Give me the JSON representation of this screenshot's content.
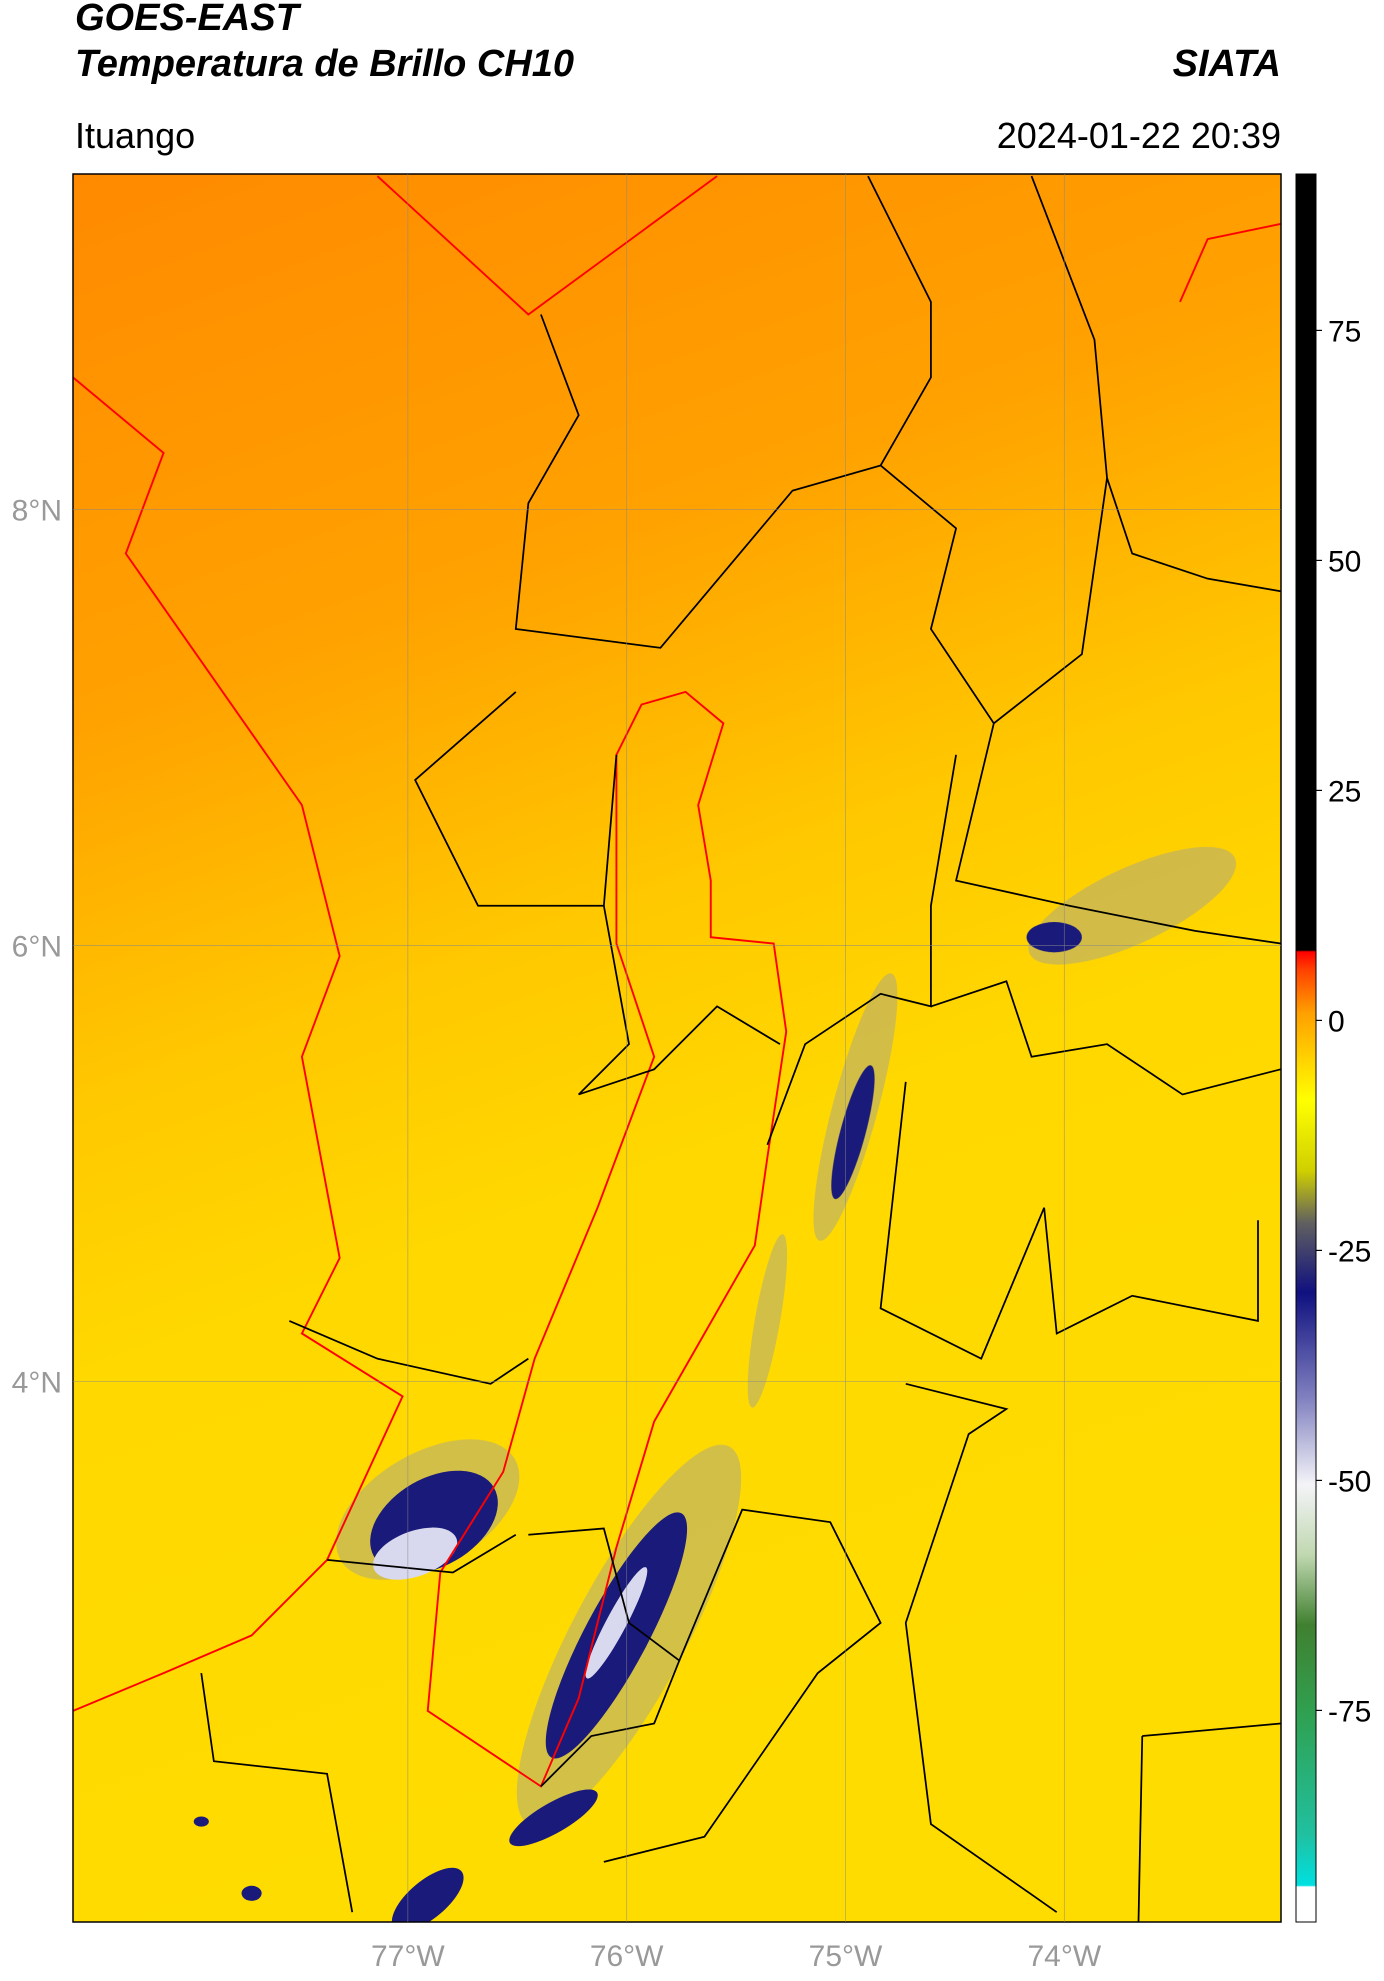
{
  "header": {
    "title": "GOES-EAST",
    "subtitle": "Temperatura de Brillo CH10",
    "source": "SIATA",
    "location": "Ituango",
    "datetime": "2024-01-22 20:39"
  },
  "chart_data": {
    "type": "map",
    "xlim": [
      -78.53,
      -73.01
    ],
    "ylim": [
      1.52,
      9.54
    ],
    "xticks": [
      {
        "value": -77,
        "label": "77°W"
      },
      {
        "value": -76,
        "label": "76°W"
      },
      {
        "value": -75,
        "label": "75°W"
      },
      {
        "value": -74,
        "label": "74°W"
      }
    ],
    "yticks": [
      {
        "value": 8,
        "label": "8°N"
      },
      {
        "value": 6,
        "label": "6°N"
      },
      {
        "value": 4,
        "label": "4°N"
      }
    ],
    "grid": true,
    "colorbar": {
      "lim": [
        -98,
        92
      ],
      "ticks": [
        75,
        50,
        25,
        0,
        -25,
        -50,
        -75
      ]
    }
  }
}
